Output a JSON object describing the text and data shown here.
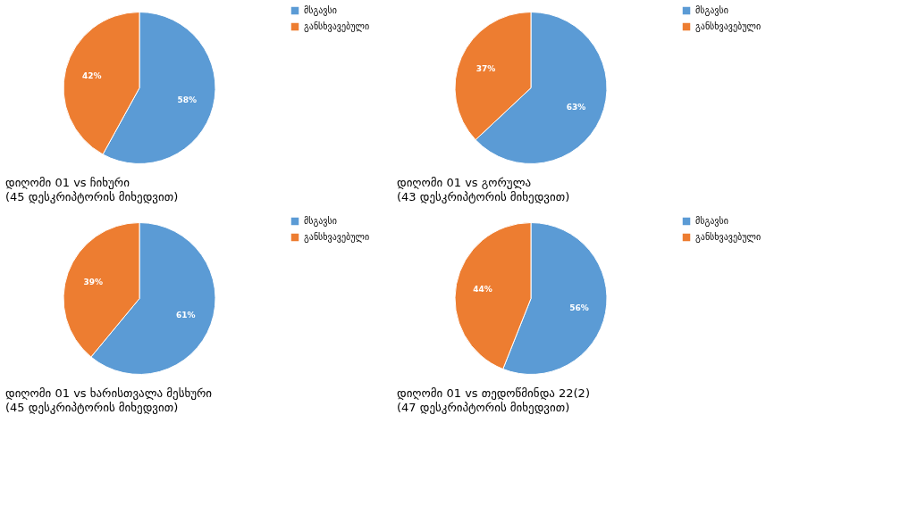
{
  "chart_data": [
    {
      "type": "pie",
      "title": "დიღომი 01 vs ჩიხური",
      "subtitle": "(45 დესკრიპტორის მიხედვით)",
      "categories": [
        "მსგავსი",
        "განსხვავებული"
      ],
      "values": [
        58,
        42
      ],
      "colors": [
        "#5b9bd5",
        "#ed7d31"
      ],
      "value_labels": [
        "58%",
        "42%"
      ],
      "legend": "right"
    },
    {
      "type": "pie",
      "title": "დიღომი 01 vs გორულა",
      "subtitle": "(43 დესკრიპტორის მიხედვით)",
      "categories": [
        "მსგავსი",
        "განსხვავებული"
      ],
      "values": [
        63,
        37
      ],
      "colors": [
        "#5b9bd5",
        "#ed7d31"
      ],
      "value_labels": [
        "63%",
        "37%"
      ],
      "legend": "right"
    },
    {
      "type": "pie",
      "title": "დიღომი 01 vs ხარისთვალა მესხური",
      "subtitle": "(45 დესკრიპტორის მიხედვით)",
      "categories": [
        "მსგავსი",
        "განსხვავებული"
      ],
      "values": [
        61,
        39
      ],
      "colors": [
        "#5b9bd5",
        "#ed7d31"
      ],
      "value_labels": [
        "61%",
        "39%"
      ],
      "legend": "right"
    },
    {
      "type": "pie",
      "title": "დიღომი 01 vs თედოწმინდა 22(2)",
      "subtitle": "(47 დესკრიპტორის მიხედვით)",
      "categories": [
        "მსგავსი",
        "განსხვავებული"
      ],
      "values": [
        56,
        44
      ],
      "colors": [
        "#5b9bd5",
        "#ed7d31"
      ],
      "value_labels": [
        "56%",
        "44%"
      ],
      "legend": "right"
    }
  ]
}
